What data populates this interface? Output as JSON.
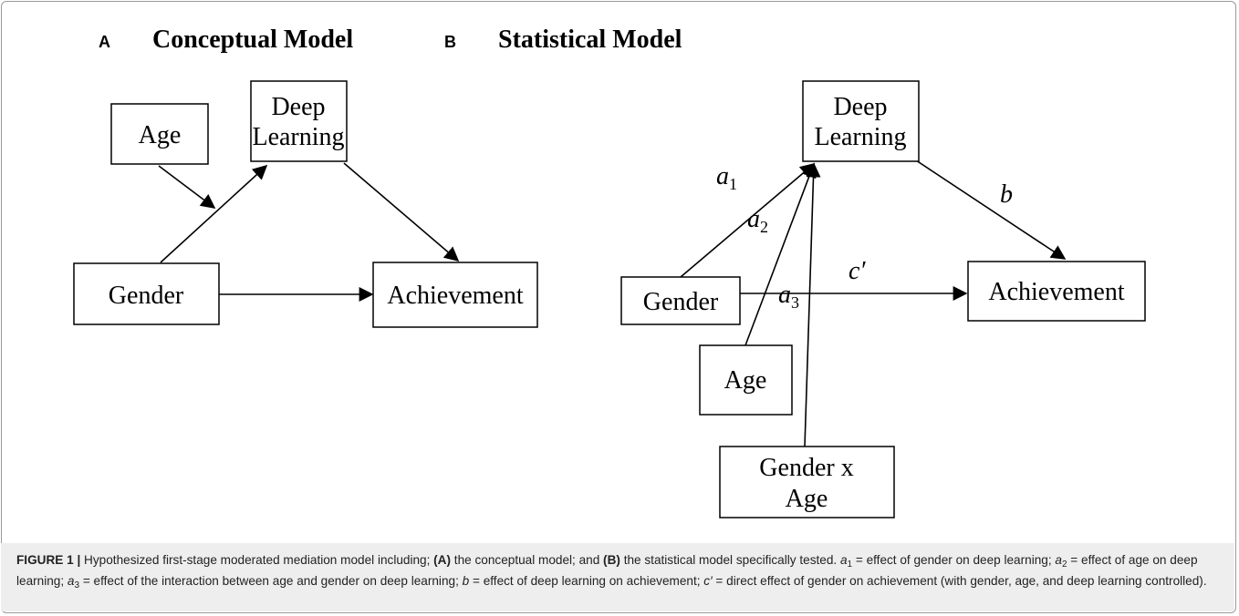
{
  "panels": [
    {
      "letter": "A",
      "title": "Conceptual Model",
      "nodes": [
        {
          "label": [
            "Age"
          ]
        },
        {
          "label": [
            "Deep",
            "Learning"
          ]
        },
        {
          "label": [
            "Gender"
          ]
        },
        {
          "label": [
            "Achievement"
          ]
        }
      ]
    },
    {
      "letter": "B",
      "title": "Statistical Model",
      "nodes": [
        {
          "label": [
            "Deep",
            "Learning"
          ]
        },
        {
          "label": [
            "Gender"
          ]
        },
        {
          "label": [
            "Achievement"
          ]
        },
        {
          "label": [
            "Age"
          ]
        },
        {
          "label": [
            "Gender x",
            "Age"
          ]
        }
      ],
      "edge_labels": [
        {
          "symbol": "a",
          "subscript": "1"
        },
        {
          "symbol": "a",
          "subscript": "2"
        },
        {
          "symbol": "a",
          "subscript": "3"
        },
        {
          "symbol": "b"
        },
        {
          "symbol": "c′"
        }
      ]
    }
  ],
  "caption": {
    "runs": [
      "FIGURE 1 |",
      " Hypothesized first-stage moderated mediation model including; ",
      "(A)",
      " the conceptual model; and ",
      "(B)",
      " the statistical model specifically tested. ",
      "a",
      "1",
      " = effect of gender on deep learning; ",
      "a",
      "2",
      " = effect of age on deep learning; ",
      "a",
      "3",
      " = effect of the interaction between age and gender on deep learning; ",
      "b",
      " = effect of deep learning on achievement; ",
      "c′",
      " = direct effect of gender on achievement (with gender, age, and deep learning controlled)."
    ]
  }
}
